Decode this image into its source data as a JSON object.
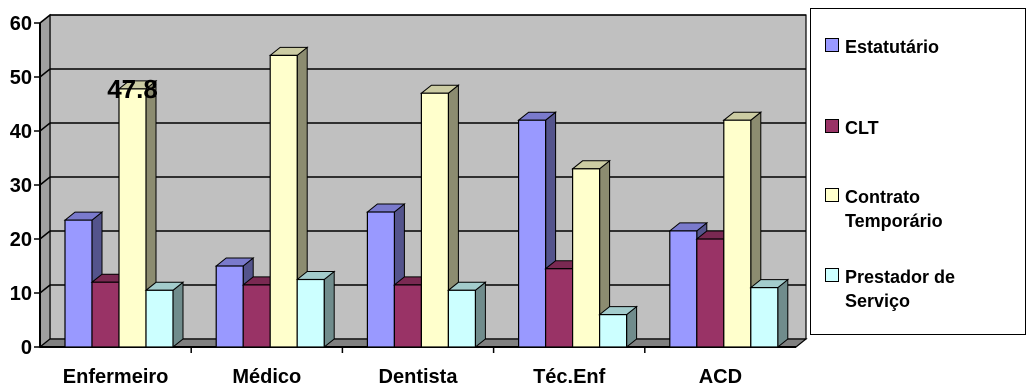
{
  "chart_data": {
    "type": "bar",
    "categories": [
      "Enfermeiro",
      "Médico",
      "Dentista",
      "Téc.Enf",
      "ACD"
    ],
    "series": [
      {
        "name": "Estatutário",
        "values": [
          23.5,
          15,
          25,
          42,
          21.5
        ],
        "color": "#9999FF"
      },
      {
        "name": "CLT",
        "values": [
          12,
          11.5,
          11.5,
          14.5,
          20
        ],
        "color": "#993366"
      },
      {
        "name": "Contrato Temporário",
        "values": [
          47.8,
          54,
          47,
          33,
          42
        ],
        "color": "#FFFFCC"
      },
      {
        "name": "Prestador de Serviço",
        "values": [
          10.5,
          12.5,
          10.5,
          6,
          11
        ],
        "color": "#CCFFFF"
      }
    ],
    "ylim": [
      0,
      60
    ],
    "yticks": [
      0,
      10,
      20,
      30,
      40,
      50,
      60
    ],
    "grid": true,
    "legend_position": "right",
    "plot_background": "#C0C0C0",
    "annotations": [
      {
        "text": "47.8",
        "category": "Enfermeiro",
        "series": "Contrato Temporário"
      }
    ]
  },
  "legend": {
    "items": [
      {
        "label": "Estatutário",
        "color": "#9999FF"
      },
      {
        "label": "CLT",
        "color": "#993366"
      },
      {
        "label": "Contrato\nTemporário",
        "color": "#FFFFCC"
      },
      {
        "label": "Prestador de\nServiço",
        "color": "#CCFFFF"
      }
    ]
  }
}
